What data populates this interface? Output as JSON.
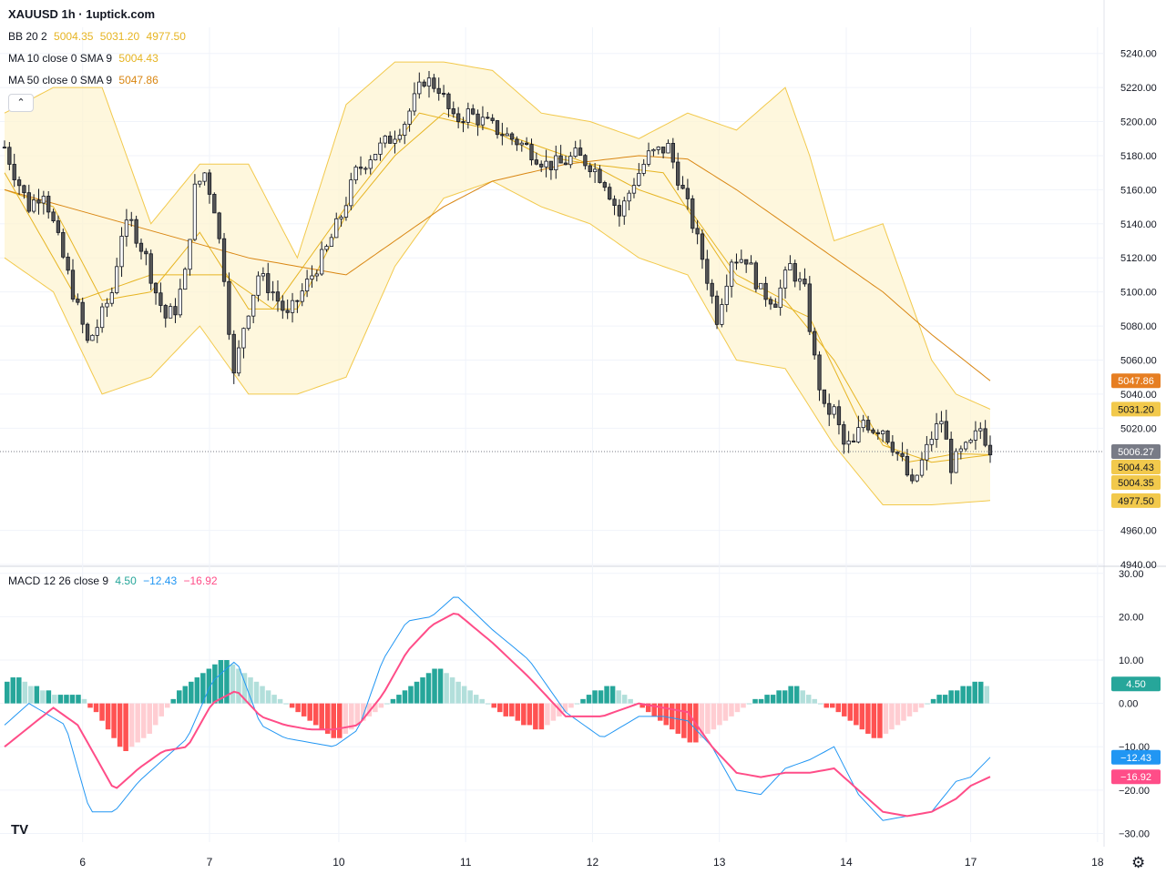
{
  "title": "XAUUSD 1h · 1uptick.com",
  "legend": {
    "bb": {
      "label": "BB 20 2",
      "v1": "5004.35",
      "v2": "5031.20",
      "v3": "4977.50",
      "color": "#e6b422"
    },
    "ma10": {
      "label": "MA 10 close 0 SMA 9",
      "v": "5004.43",
      "color": "#e6b422"
    },
    "ma50": {
      "label": "MA 50 close 0 SMA 9",
      "v": "5047.86",
      "color": "#d98612"
    },
    "macd": {
      "label": "MACD 12 26 close 9",
      "v1": "4.50",
      "v2": "−12.43",
      "v3": "−16.92",
      "c1": "#26a69a",
      "c2": "#2196f3",
      "c3": "#ff4d88"
    }
  },
  "collapse_icon": "⌃",
  "logo": "TV",
  "settings_icon": "⚙",
  "chart_data": [
    {
      "type": "candlestick",
      "title": "XAUUSD 1h",
      "x_ticks": [
        "6",
        "7",
        "10",
        "11",
        "12",
        "13",
        "14",
        "17",
        "18"
      ],
      "ylim": [
        4940,
        5250
      ],
      "y_ticks": [
        "5240.00",
        "5220.00",
        "5200.00",
        "5180.00",
        "5160.00",
        "5140.00",
        "5120.00",
        "5100.00",
        "5080.00",
        "5060.00",
        "5040.00",
        "5020.00",
        "4960.00",
        "4940.00"
      ],
      "last_price": "5006.27",
      "price_labels": [
        {
          "text": "5047.86",
          "color": "#e67e22"
        },
        {
          "text": "5031.20",
          "color": "#f2c94c"
        },
        {
          "text": "5006.27",
          "color": "#787b86"
        },
        {
          "text": "5004.43",
          "color": "#f2c94c"
        },
        {
          "text": "5004.35",
          "color": "#f2c94c"
        },
        {
          "text": "4977.50",
          "color": "#f2c94c"
        }
      ],
      "close_path": [
        [
          0,
          5185
        ],
        [
          4,
          5170
        ],
        [
          10,
          5150
        ],
        [
          16,
          5160
        ],
        [
          22,
          5130
        ],
        [
          28,
          5100
        ],
        [
          34,
          5070
        ],
        [
          38,
          5080
        ],
        [
          44,
          5100
        ],
        [
          48,
          5135
        ],
        [
          52,
          5140
        ],
        [
          58,
          5120
        ],
        [
          62,
          5100
        ],
        [
          66,
          5085
        ],
        [
          70,
          5090
        ],
        [
          74,
          5110
        ],
        [
          78,
          5160
        ],
        [
          82,
          5170
        ],
        [
          86,
          5150
        ],
        [
          90,
          5110
        ],
        [
          94,
          5050
        ],
        [
          98,
          5080
        ],
        [
          104,
          5110
        ],
        [
          110,
          5100
        ],
        [
          116,
          5085
        ],
        [
          122,
          5100
        ],
        [
          126,
          5110
        ],
        [
          132,
          5125
        ],
        [
          138,
          5145
        ],
        [
          144,
          5170
        ],
        [
          150,
          5180
        ],
        [
          158,
          5190
        ],
        [
          164,
          5200
        ],
        [
          172,
          5225
        ],
        [
          178,
          5220
        ],
        [
          184,
          5200
        ],
        [
          190,
          5205
        ],
        [
          196,
          5200
        ],
        [
          202,
          5195
        ],
        [
          208,
          5190
        ],
        [
          214,
          5185
        ],
        [
          222,
          5175
        ],
        [
          228,
          5175
        ],
        [
          234,
          5180
        ],
        [
          240,
          5175
        ],
        [
          246,
          5165
        ],
        [
          252,
          5145
        ],
        [
          258,
          5165
        ],
        [
          264,
          5180
        ],
        [
          272,
          5185
        ],
        [
          280,
          5150
        ],
        [
          286,
          5120
        ],
        [
          292,
          5085
        ],
        [
          298,
          5120
        ],
        [
          304,
          5120
        ],
        [
          310,
          5100
        ],
        [
          316,
          5095
        ],
        [
          322,
          5115
        ],
        [
          328,
          5100
        ],
        [
          332,
          5060
        ],
        [
          336,
          5030
        ],
        [
          340,
          5030
        ],
        [
          344,
          5010
        ],
        [
          348,
          5010
        ],
        [
          352,
          5025
        ],
        [
          356,
          5020
        ],
        [
          360,
          5020
        ],
        [
          364,
          5010
        ],
        [
          368,
          5000
        ],
        [
          372,
          4985
        ],
        [
          376,
          5000
        ],
        [
          380,
          5015
        ],
        [
          384,
          5025
        ],
        [
          388,
          4998
        ],
        [
          392,
          5005
        ],
        [
          396,
          5010
        ],
        [
          400,
          5020
        ],
        [
          404,
          5008
        ]
      ],
      "bb_mid": [
        [
          0,
          5160
        ],
        [
          20,
          5150
        ],
        [
          40,
          5095
        ],
        [
          60,
          5100
        ],
        [
          80,
          5135
        ],
        [
          100,
          5090
        ],
        [
          120,
          5090
        ],
        [
          140,
          5145
        ],
        [
          160,
          5180
        ],
        [
          180,
          5205
        ],
        [
          200,
          5195
        ],
        [
          220,
          5180
        ],
        [
          240,
          5175
        ],
        [
          260,
          5160
        ],
        [
          280,
          5150
        ],
        [
          300,
          5110
        ],
        [
          320,
          5095
        ],
        [
          340,
          5060
        ],
        [
          360,
          5010
        ],
        [
          380,
          5000
        ],
        [
          404,
          5004.35
        ]
      ],
      "bb_upper": [
        [
          0,
          5205
        ],
        [
          20,
          5220
        ],
        [
          40,
          5220
        ],
        [
          60,
          5140
        ],
        [
          80,
          5175
        ],
        [
          100,
          5175
        ],
        [
          120,
          5120
        ],
        [
          140,
          5210
        ],
        [
          160,
          5235
        ],
        [
          180,
          5235
        ],
        [
          200,
          5230
        ],
        [
          220,
          5205
        ],
        [
          240,
          5200
        ],
        [
          260,
          5190
        ],
        [
          280,
          5205
        ],
        [
          300,
          5195
        ],
        [
          320,
          5220
        ],
        [
          330,
          5180
        ],
        [
          340,
          5130
        ],
        [
          360,
          5140
        ],
        [
          380,
          5060
        ],
        [
          390,
          5040
        ],
        [
          404,
          5031.2
        ]
      ],
      "bb_lower": [
        [
          0,
          5120
        ],
        [
          20,
          5100
        ],
        [
          40,
          5040
        ],
        [
          60,
          5050
        ],
        [
          80,
          5080
        ],
        [
          100,
          5040
        ],
        [
          120,
          5040
        ],
        [
          140,
          5050
        ],
        [
          160,
          5115
        ],
        [
          180,
          5155
        ],
        [
          200,
          5165
        ],
        [
          220,
          5150
        ],
        [
          240,
          5140
        ],
        [
          260,
          5120
        ],
        [
          280,
          5110
        ],
        [
          300,
          5060
        ],
        [
          320,
          5055
        ],
        [
          340,
          5010
        ],
        [
          360,
          4975
        ],
        [
          380,
          4975
        ],
        [
          404,
          4977.5
        ]
      ],
      "ma50": [
        [
          0,
          5160
        ],
        [
          50,
          5140
        ],
        [
          100,
          5120
        ],
        [
          140,
          5110
        ],
        [
          160,
          5130
        ],
        [
          180,
          5150
        ],
        [
          200,
          5165
        ],
        [
          230,
          5175
        ],
        [
          260,
          5180
        ],
        [
          280,
          5178
        ],
        [
          300,
          5160
        ],
        [
          320,
          5140
        ],
        [
          340,
          5120
        ],
        [
          360,
          5100
        ],
        [
          380,
          5075
        ],
        [
          404,
          5047.86
        ]
      ],
      "ma10": [
        [
          0,
          5170
        ],
        [
          30,
          5095
        ],
        [
          60,
          5110
        ],
        [
          90,
          5110
        ],
        [
          110,
          5090
        ],
        [
          140,
          5150
        ],
        [
          170,
          5205
        ],
        [
          200,
          5195
        ],
        [
          240,
          5175
        ],
        [
          270,
          5170
        ],
        [
          300,
          5105
        ],
        [
          330,
          5085
        ],
        [
          350,
          5025
        ],
        [
          370,
          5000
        ],
        [
          390,
          5005
        ],
        [
          404,
          5004.43
        ]
      ]
    },
    {
      "type": "macd",
      "title": "MACD 12 26 close 9",
      "ylim": [
        -32,
        31
      ],
      "y_ticks": [
        "30.00",
        "20.00",
        "10.00",
        "0.00",
        "−10.00",
        "−20.00",
        "−30.00"
      ],
      "right_labels": [
        {
          "text": "4.50",
          "color": "#26a69a"
        },
        {
          "text": "−12.43",
          "color": "#2196f3"
        },
        {
          "text": "−16.92",
          "color": "#ff4d88"
        }
      ],
      "macd_line": [
        [
          0,
          -5
        ],
        [
          10,
          0
        ],
        [
          25,
          -5
        ],
        [
          35,
          -25
        ],
        [
          45,
          -25
        ],
        [
          55,
          -18
        ],
        [
          65,
          -13
        ],
        [
          75,
          -8
        ],
        [
          85,
          5
        ],
        [
          95,
          10
        ],
        [
          105,
          -5
        ],
        [
          115,
          -8
        ],
        [
          125,
          -9
        ],
        [
          135,
          -10
        ],
        [
          145,
          -6
        ],
        [
          155,
          10
        ],
        [
          165,
          19
        ],
        [
          175,
          20
        ],
        [
          185,
          25
        ],
        [
          200,
          17
        ],
        [
          215,
          10
        ],
        [
          230,
          -2
        ],
        [
          245,
          -8
        ],
        [
          260,
          -3
        ],
        [
          270,
          -3
        ],
        [
          280,
          -4
        ],
        [
          290,
          -10
        ],
        [
          300,
          -20
        ],
        [
          310,
          -21
        ],
        [
          320,
          -15
        ],
        [
          330,
          -13
        ],
        [
          340,
          -10
        ],
        [
          350,
          -21
        ],
        [
          360,
          -27
        ],
        [
          370,
          -26
        ],
        [
          380,
          -25
        ],
        [
          390,
          -18
        ],
        [
          396,
          -17
        ],
        [
          404,
          -12.43
        ]
      ],
      "signal_line": [
        [
          0,
          -10
        ],
        [
          20,
          -1
        ],
        [
          30,
          -5
        ],
        [
          45,
          -20
        ],
        [
          55,
          -15
        ],
        [
          65,
          -11
        ],
        [
          75,
          -10
        ],
        [
          85,
          0
        ],
        [
          95,
          3
        ],
        [
          105,
          -3
        ],
        [
          115,
          -5
        ],
        [
          125,
          -6
        ],
        [
          135,
          -6
        ],
        [
          145,
          -5
        ],
        [
          155,
          2
        ],
        [
          165,
          12
        ],
        [
          175,
          18
        ],
        [
          185,
          21
        ],
        [
          200,
          14
        ],
        [
          215,
          6
        ],
        [
          230,
          -3
        ],
        [
          245,
          -3
        ],
        [
          260,
          0
        ],
        [
          270,
          -1
        ],
        [
          280,
          -2
        ],
        [
          290,
          -10
        ],
        [
          300,
          -16
        ],
        [
          310,
          -17
        ],
        [
          320,
          -16
        ],
        [
          330,
          -16
        ],
        [
          340,
          -15
        ],
        [
          350,
          -20
        ],
        [
          360,
          -25
        ],
        [
          370,
          -26
        ],
        [
          380,
          -25
        ],
        [
          390,
          -22
        ],
        [
          396,
          -19
        ],
        [
          404,
          -16.92
        ]
      ],
      "histogram": [
        5,
        6,
        6,
        5,
        4,
        4,
        3,
        3,
        2,
        2,
        2,
        2,
        2,
        1,
        -1,
        -2,
        -4,
        -6,
        -8,
        -10,
        -11,
        -10,
        -9,
        -8,
        -7,
        -5,
        -3,
        -1,
        1,
        3,
        4,
        5,
        6,
        7,
        8,
        9,
        10,
        10,
        9,
        8,
        7,
        6,
        5,
        4,
        3,
        2,
        1,
        0,
        -1,
        -2,
        -3,
        -4,
        -5,
        -6,
        -7,
        -8,
        -8,
        -7,
        -6,
        -5,
        -4,
        -3,
        -2,
        -1,
        0,
        1,
        2,
        3,
        4,
        5,
        6,
        7,
        8,
        8,
        7,
        6,
        5,
        4,
        3,
        2,
        1,
        0,
        -1,
        -2,
        -3,
        -3,
        -4,
        -5,
        -5,
        -6,
        -6,
        -5,
        -4,
        -3,
        -2,
        -1,
        0,
        1,
        2,
        3,
        3,
        4,
        4,
        3,
        2,
        1,
        0,
        -1,
        -2,
        -3,
        -4,
        -5,
        -6,
        -7,
        -8,
        -9,
        -9,
        -8,
        -7,
        -6,
        -5,
        -4,
        -3,
        -2,
        -1,
        0,
        1,
        1,
        2,
        2,
        3,
        3,
        4,
        4,
        3,
        2,
        1,
        0,
        -1,
        -1,
        -2,
        -3,
        -4,
        -5,
        -6,
        -7,
        -8,
        -8,
        -7,
        -6,
        -5,
        -4,
        -3,
        -2,
        -1,
        0,
        1,
        2,
        2,
        3,
        3,
        4,
        4,
        5,
        5,
        4
      ]
    }
  ]
}
